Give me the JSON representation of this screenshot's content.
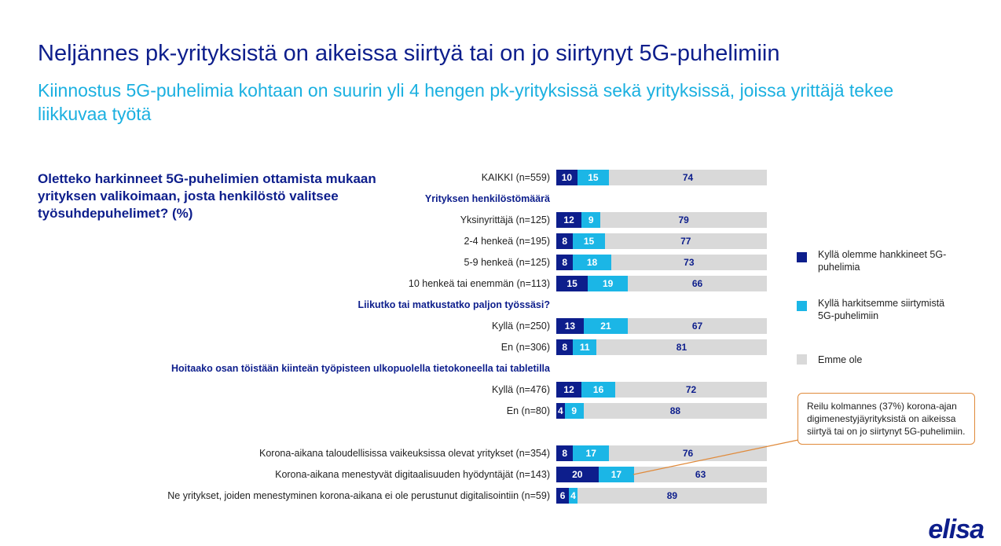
{
  "title": "Neljännes pk-yrityksistä on aikeissa siirtyä tai on jo siirtynyt 5G-puhelimiin",
  "subtitle": "Kiinnostus 5G-puhelimia kohtaan on suurin yli 4 hengen pk-yrityksissä sekä yrityksissä, joissa yrittäjä tekee liikkuvaa työtä",
  "question": "Oletteko harkinneet 5G-puhelimien ottamista mukaan yrityksen valikoimaan, josta henkilöstö valitsee työsuhdepuhelimet? (%)",
  "callout": "Reilu kolmannes (37%) korona-ajan digimenestyjäyrityksistä on aikeissa siirtyä tai on jo siirtynyt 5G-puhelimiin.",
  "logo": "elisa",
  "chart_data": {
    "type": "bar",
    "orientation": "horizontal",
    "stacked": true,
    "xlim": [
      0,
      100
    ],
    "series": [
      {
        "name": "Kyllä olemme hankkineet 5G-puhelimia",
        "color": "#0d1e8c"
      },
      {
        "name": "Kyllä harkitsemme siirtymistä 5G-puhelimiin",
        "color": "#1bb6e6"
      },
      {
        "name": "Emme ole",
        "color": "#d9d9d9"
      }
    ],
    "rows": [
      {
        "label": "KAIKKI (n=559)",
        "values": [
          10,
          15,
          74
        ]
      },
      {
        "group": "Yrityksen henkilöstömäärä"
      },
      {
        "label": "Yksinyrittäjä (n=125)",
        "values": [
          12,
          9,
          79
        ]
      },
      {
        "label": "2-4 henkeä (n=195)",
        "values": [
          8,
          15,
          77
        ]
      },
      {
        "label": "5-9 henkeä (n=125)",
        "values": [
          8,
          18,
          73
        ]
      },
      {
        "label": "10 henkeä tai enemmän (n=113)",
        "values": [
          15,
          19,
          66
        ]
      },
      {
        "group": "Liikutko tai matkustatko paljon työssäsi?"
      },
      {
        "label": "Kyllä (n=250)",
        "values": [
          13,
          21,
          67
        ]
      },
      {
        "label": "En (n=306)",
        "values": [
          8,
          11,
          81
        ]
      },
      {
        "group": "Hoitaako osan töistään kiinteän työpisteen ulkopuolella tietokoneella tai tabletilla"
      },
      {
        "label": "Kyllä (n=476)",
        "values": [
          12,
          16,
          72
        ]
      },
      {
        "label": "En (n=80)",
        "values": [
          4,
          9,
          88
        ]
      },
      {
        "spacer": true
      },
      {
        "label": "Korona-aikana taloudellisissa vaikeuksissa olevat yritykset (n=354)",
        "values": [
          8,
          17,
          76
        ]
      },
      {
        "label": "Korona-aikana menestyvät digitaalisuuden hyödyntäjät (n=143)",
        "values": [
          20,
          17,
          63
        ]
      },
      {
        "label": "Ne yritykset, joiden menestyminen korona-aikana ei ole perustunut digitalisointiin (n=59)",
        "values": [
          6,
          4,
          89
        ]
      }
    ]
  }
}
